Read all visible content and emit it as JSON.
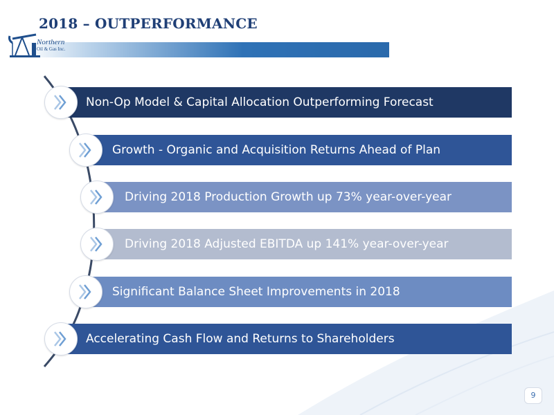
{
  "slide": {
    "title": "2018 – OUTPERFORMANCE",
    "logo": {
      "line1": "Northern",
      "line2": "Oil & Gas Inc."
    },
    "page_number": "9"
  },
  "items": [
    {
      "label": "Non-Op Model & Capital Allocation Outperforming Forecast",
      "color": "#1f3864",
      "icon": "chevron-right-double-icon"
    },
    {
      "label": "Growth - Organic and Acquisition Returns Ahead of Plan",
      "color": "#2f5597",
      "icon": "chevron-right-double-icon"
    },
    {
      "label": "Driving 2018 Production Growth up 73% year-over-year",
      "color": "#7b93c4",
      "icon": "chevron-right-double-icon"
    },
    {
      "label": "Driving 2018 Adjusted EBITDA up 141% year-over-year",
      "color": "#b3bccf",
      "icon": "chevron-right-double-icon"
    },
    {
      "label": "Significant Balance Sheet Improvements in 2018",
      "color": "#6d8cc2",
      "icon": "chevron-right-double-icon"
    },
    {
      "label": "Accelerating Cash Flow and Returns to Shareholders",
      "color": "#2f5597",
      "icon": "chevron-right-double-icon"
    }
  ]
}
